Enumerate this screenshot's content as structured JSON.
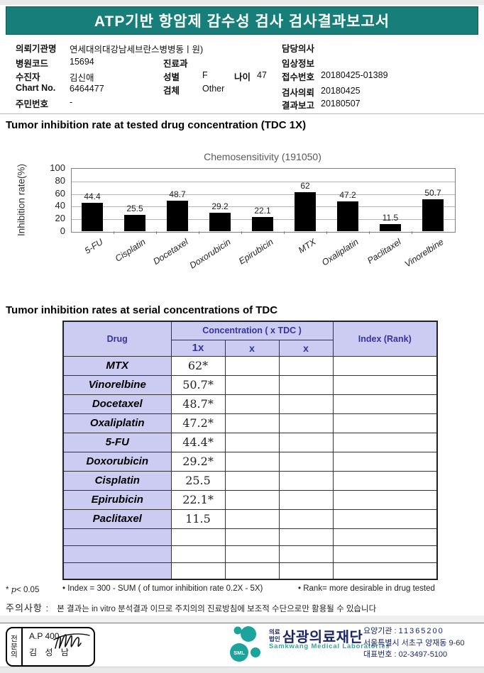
{
  "page": {
    "title": "ATP기반 항암제 감수성 검사 검사결과보고서"
  },
  "patient_info": {
    "org_label": "의뢰기관명",
    "org": "연세대의대강남세브란스병병동ㅣ원)",
    "hosp_code_label": "병원코드",
    "hosp_code": "15694",
    "patient_label": "수진자",
    "patient": "김신애",
    "chart_label": "Chart No.",
    "chart": "6464477",
    "jumin_label": "주민번호",
    "jumin": "-",
    "dept_label": "진료과",
    "dept": "",
    "sex_label": "성별",
    "sex": "F",
    "age_label": "나이",
    "age": "47",
    "specimen_label": "검체",
    "specimen": "Other",
    "doctor_label": "담당의사",
    "doctor": "",
    "clinical_label": "임상정보",
    "clinical": "",
    "receipt_label": "접수번호",
    "receipt": "20180425-01389",
    "request_label": "검사의뢰",
    "request": "20180425",
    "report_label": "결과보고",
    "report": "20180507"
  },
  "section1": {
    "heading": "Tumor inhibition rate at tested drug concentration (TDC 1X)"
  },
  "chart_data": {
    "type": "bar",
    "title": "Chemosensitivity (191050)",
    "categories": [
      "5-FU",
      "Cisplatin",
      "Docetaxel",
      "Doxorubicin",
      "Epirubicin",
      "MTX",
      "Oxaliplatin",
      "Paclitaxel",
      "Vinorelbine"
    ],
    "values": [
      44.4,
      25.5,
      48.7,
      29.2,
      22.1,
      62,
      47.2,
      11.5,
      50.7
    ],
    "xlabel": "",
    "ylabel": "Inhibition rate(%)",
    "ylim": [
      0,
      100
    ],
    "ytick_step": 20,
    "grid": true,
    "legend": false
  },
  "section2": {
    "heading": "Tumor inhibition rates at serial concentrations of TDC"
  },
  "table": {
    "header_drug": "Drug",
    "header_conc": "Concentration ( x TDC )",
    "sub": [
      "1x",
      "x",
      "x"
    ],
    "header_index": "Index (Rank)",
    "rows": [
      {
        "drug": "MTX",
        "c1": "62*",
        "c2": "",
        "c3": "",
        "index": ""
      },
      {
        "drug": "Vinorelbine",
        "c1": "50.7*",
        "c2": "",
        "c3": "",
        "index": ""
      },
      {
        "drug": "Docetaxel",
        "c1": "48.7*",
        "c2": "",
        "c3": "",
        "index": ""
      },
      {
        "drug": "Oxaliplatin",
        "c1": "47.2*",
        "c2": "",
        "c3": "",
        "index": ""
      },
      {
        "drug": "5-FU",
        "c1": "44.4*",
        "c2": "",
        "c3": "",
        "index": ""
      },
      {
        "drug": "Doxorubicin",
        "c1": "29.2*",
        "c2": "",
        "c3": "",
        "index": ""
      },
      {
        "drug": "Cisplatin",
        "c1": "25.5",
        "c2": "",
        "c3": "",
        "index": ""
      },
      {
        "drug": "Epirubicin",
        "c1": "22.1*",
        "c2": "",
        "c3": "",
        "index": ""
      },
      {
        "drug": "Paclitaxel",
        "c1": "11.5",
        "c2": "",
        "c3": "",
        "index": ""
      }
    ],
    "empty_rows": 3
  },
  "footnotes": {
    "sig_prefix": "* ",
    "sig_p": "p",
    "sig_rest": "< 0.05",
    "index": "• Index = 300 - SUM ( of tumor inhibition rate 0.2X  -  5X)",
    "rank": "• Rank= more desirable in drug tested"
  },
  "notice": {
    "label": "주의사항 :",
    "text": "본 결과는 in vitro 분석결과 이므로 주치의의 진료방침에 보조적 수단으로만 활용될 수 있습니다"
  },
  "footer": {
    "sign_role": [
      "전",
      "문",
      "의"
    ],
    "sign_code": "A.P 400",
    "sign_name": "김 성 남",
    "logo_text": "SML",
    "org_type": [
      "의료",
      "법인"
    ],
    "org_name": "삼광의료재단",
    "org_name_en": "Samkwang Medical Laboratories",
    "contact_org_label": "요양기관 :",
    "contact_org": "11365200",
    "contact_addr": "서울특별시 서초구 양재동 9-60",
    "contact_tel_label": "대표번호 :",
    "contact_tel": "02-3497-5100"
  },
  "colors": {
    "header_teal": "#177E79",
    "table_header_bg": "#CCCCF2",
    "table_header_text": "#3333A0",
    "bar_color": "#000000",
    "logo_teal": "#1BA39C",
    "navy": "#1B2668"
  }
}
